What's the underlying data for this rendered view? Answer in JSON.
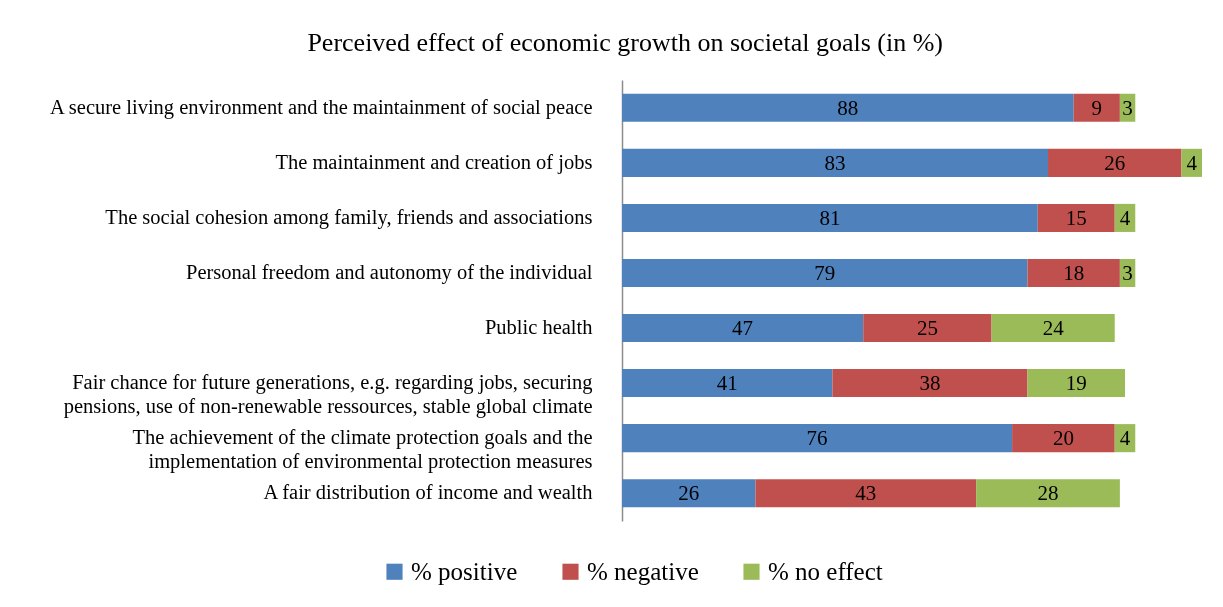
{
  "chart_data": {
    "type": "bar",
    "orientation": "horizontal",
    "stacked": true,
    "title": "Perceived effect of economic growth on societal goals (in %)",
    "categories": [
      "A secure living environment and the maintainment of social peace",
      "The maintainment and creation of jobs",
      "The social cohesion among family, friends and associations",
      "Personal freedom and autonomy of the individual",
      "Public health",
      "Fair chance for future generations, e.g. regarding jobs, securing pensions, use of non-renewable ressources, stable global climate",
      "The achievement of the climate protection goals and the implementation of environmental protection measures",
      "A fair distribution of income and wealth"
    ],
    "series": [
      {
        "name": "% positive",
        "color": "#4f81bd",
        "values": [
          88,
          83,
          81,
          79,
          47,
          41,
          76,
          26
        ]
      },
      {
        "name": "% negative",
        "color": "#c0504d",
        "values": [
          9,
          26,
          15,
          18,
          25,
          38,
          20,
          43
        ]
      },
      {
        "name": "% no effect",
        "color": "#9bbb59",
        "values": [
          3,
          4,
          4,
          3,
          24,
          19,
          4,
          28
        ]
      }
    ],
    "data_labels": true,
    "legend": "bottom",
    "tick_labels": "y"
  }
}
